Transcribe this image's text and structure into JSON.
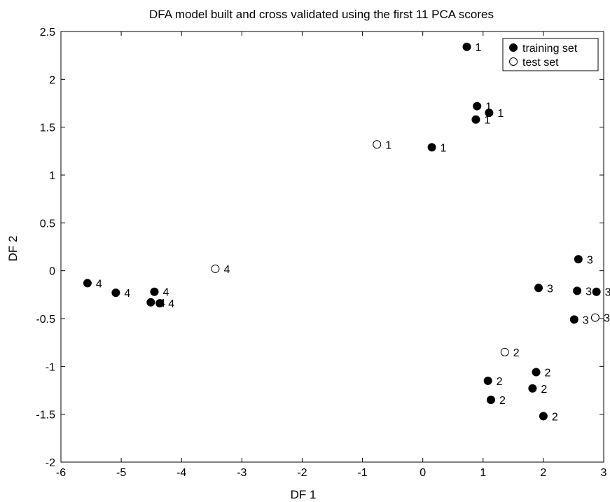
{
  "chart_data": {
    "type": "scatter",
    "title": "DFA model built and cross validated using the first 11 PCA scores",
    "xlabel": "DF 1",
    "ylabel": "DF 2",
    "xlim": [
      -6,
      3
    ],
    "ylim": [
      -2,
      2.5
    ],
    "xticks": [
      "-6",
      "-5",
      "-4",
      "-3",
      "-2",
      "-1",
      "0",
      "1",
      "2",
      "3"
    ],
    "yticks": [
      "-2",
      "-1.5",
      "-1",
      "-0.5",
      "0",
      "0.5",
      "1",
      "1.5",
      "2",
      "2.5"
    ],
    "grid": false,
    "legend": {
      "position": "top-right",
      "entries": [
        {
          "label": "training set",
          "marker": "filled-circle"
        },
        {
          "label": "test set",
          "marker": "open-circle"
        }
      ]
    },
    "series": [
      {
        "name": "training set",
        "marker": "filled-circle",
        "points": [
          {
            "x": 0.73,
            "y": 2.34,
            "label": "1"
          },
          {
            "x": 0.9,
            "y": 1.72,
            "label": "1"
          },
          {
            "x": 1.1,
            "y": 1.65,
            "label": "1"
          },
          {
            "x": 0.88,
            "y": 1.58,
            "label": "1"
          },
          {
            "x": 0.15,
            "y": 1.29,
            "label": "1"
          },
          {
            "x": 1.08,
            "y": -1.15,
            "label": "2"
          },
          {
            "x": 1.88,
            "y": -1.06,
            "label": "2"
          },
          {
            "x": 1.82,
            "y": -1.23,
            "label": "2"
          },
          {
            "x": 1.13,
            "y": -1.35,
            "label": "2"
          },
          {
            "x": 2.0,
            "y": -1.52,
            "label": "2"
          },
          {
            "x": 2.58,
            "y": 0.12,
            "label": "3"
          },
          {
            "x": 1.92,
            "y": -0.18,
            "label": "3"
          },
          {
            "x": 2.56,
            "y": -0.21,
            "label": "3"
          },
          {
            "x": 2.88,
            "y": -0.22,
            "label": "3"
          },
          {
            "x": 2.51,
            "y": -0.51,
            "label": "3"
          },
          {
            "x": -5.56,
            "y": -0.13,
            "label": "4"
          },
          {
            "x": -5.09,
            "y": -0.23,
            "label": "4"
          },
          {
            "x": -4.45,
            "y": -0.22,
            "label": "4"
          },
          {
            "x": -4.51,
            "y": -0.33,
            "label": "4"
          },
          {
            "x": -4.36,
            "y": -0.34,
            "label": "4"
          }
        ]
      },
      {
        "name": "test set",
        "marker": "open-circle",
        "points": [
          {
            "x": -0.76,
            "y": 1.32,
            "label": "1"
          },
          {
            "x": 1.36,
            "y": -0.85,
            "label": "2"
          },
          {
            "x": 2.86,
            "y": -0.49,
            "label": "3"
          },
          {
            "x": -3.44,
            "y": 0.02,
            "label": "4"
          }
        ]
      }
    ]
  }
}
